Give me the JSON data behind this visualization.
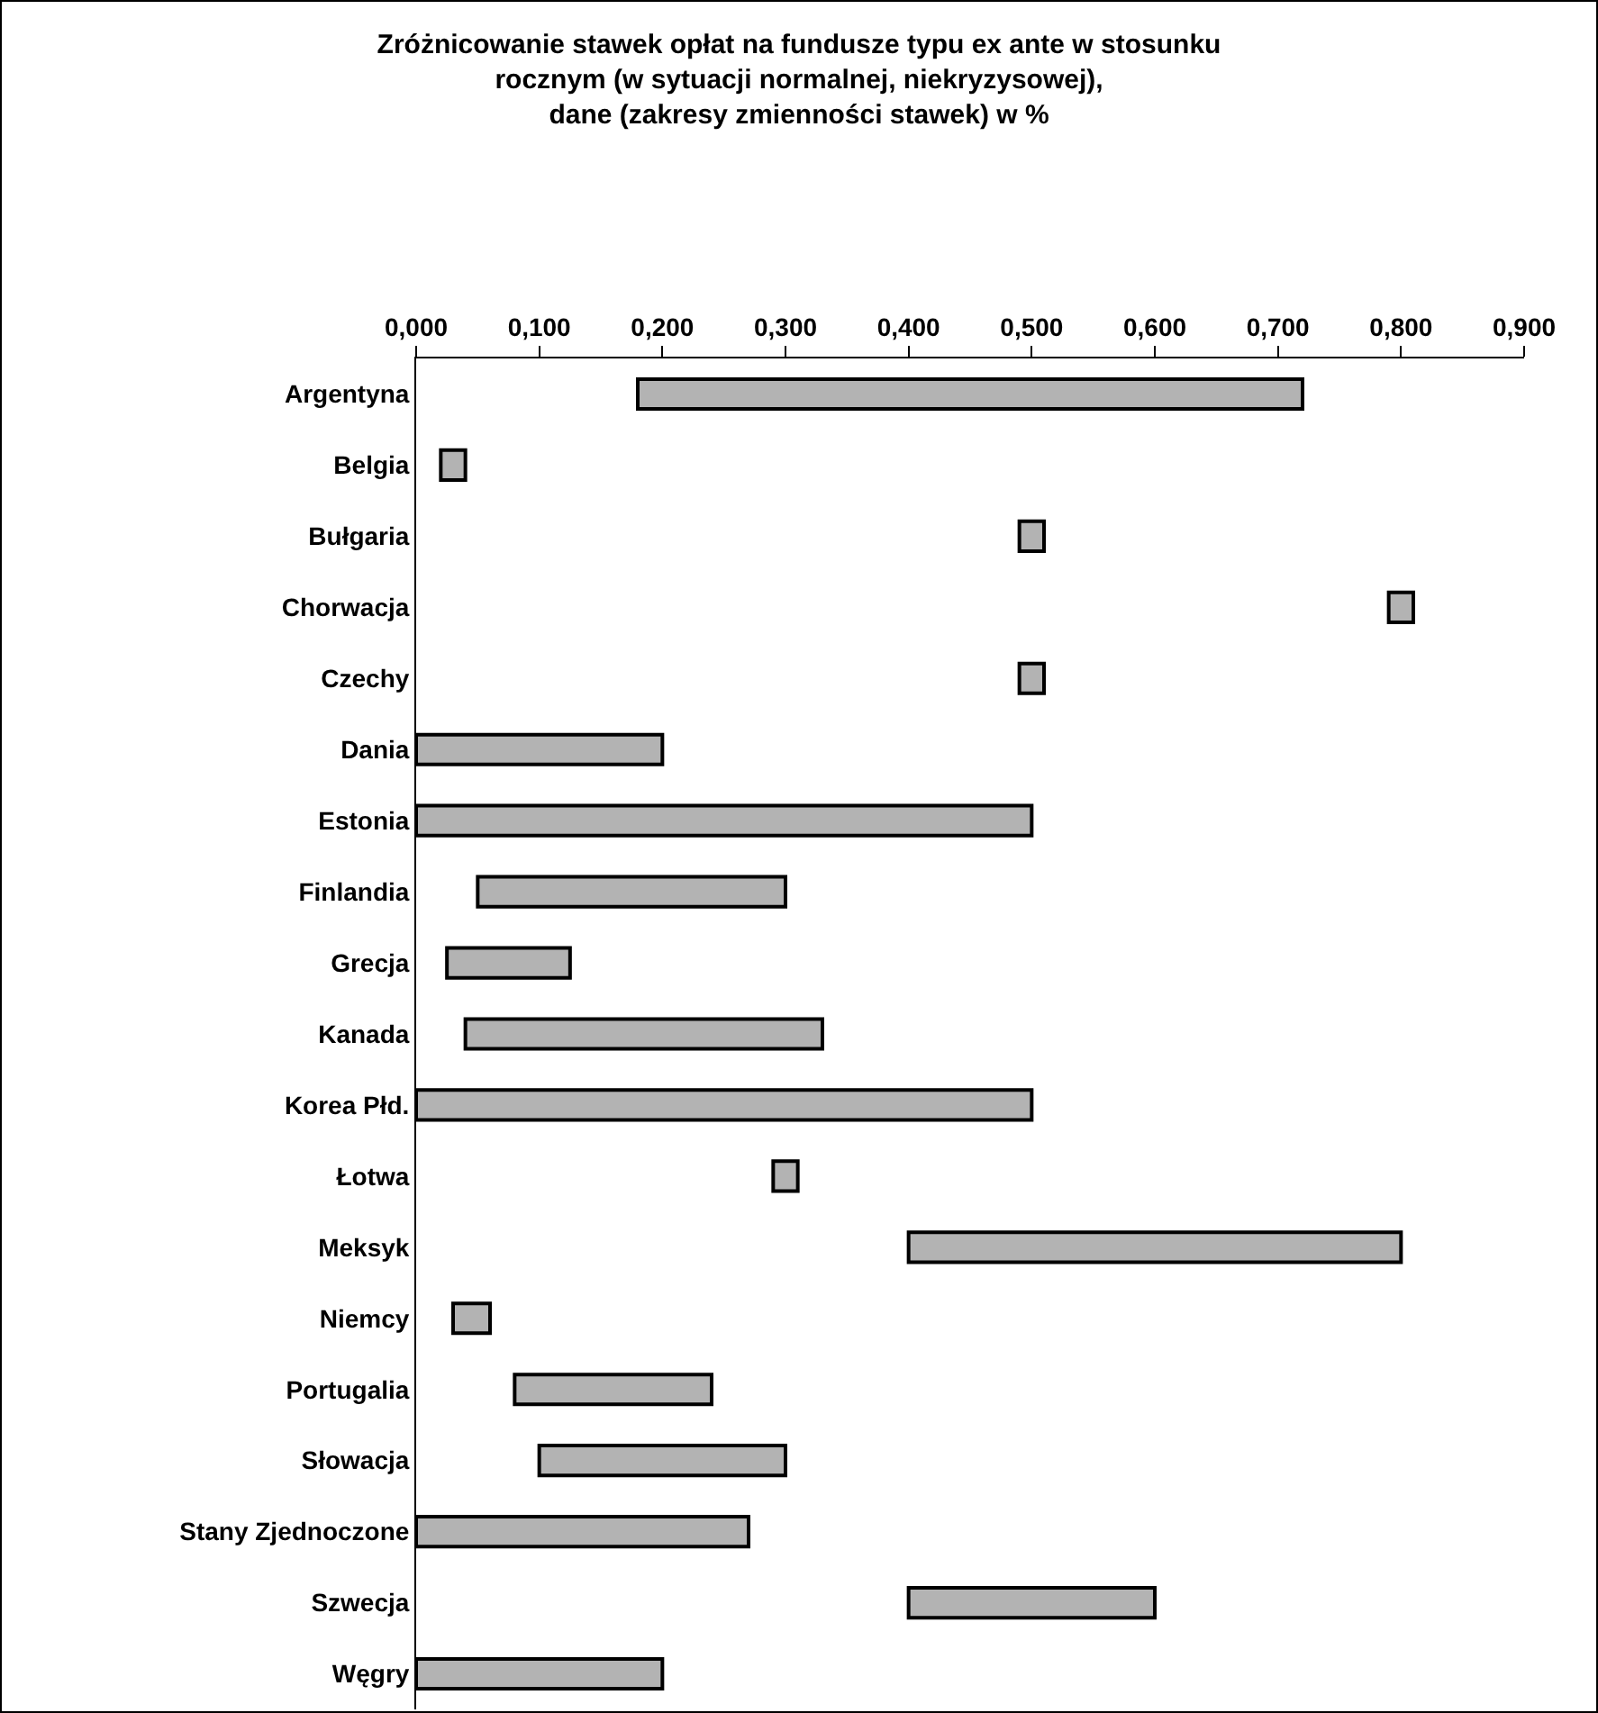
{
  "chart_data": {
    "type": "bar",
    "orientation": "horizontal",
    "title": "Zróżnicowanie stawek opłat na fundusze typu ex ante w stosunku\nrocznym (w sytuacji normalnej, niekryzysowej),\ndane (zakresy zmienności stawek) w %",
    "categories": [
      "Argentyna",
      "Belgia",
      "Bułgaria",
      "Chorwacja",
      "Czechy",
      "Dania",
      "Estonia",
      "Finlandia",
      "Grecja",
      "Kanada",
      "Korea Płd.",
      "Łotwa",
      "Meksyk",
      "Niemcy",
      "Portugalia",
      "Słowacja",
      "Stany Zjednoczone",
      "Szwecja",
      "Węgry"
    ],
    "base": [
      0.18,
      0.02,
      0.49,
      0.79,
      0.49,
      0,
      0,
      0.05,
      0.025,
      0.04,
      0,
      0.29,
      0.4,
      0.03,
      0.08,
      0.1,
      0,
      0.4,
      0
    ],
    "values": [
      0.54,
      0.02,
      0.02,
      0.02,
      0.02,
      0.2,
      0.5,
      0.25,
      0.1,
      0.29,
      0.5,
      0.02,
      0.4,
      0.03,
      0.16,
      0.2,
      0.27,
      0.2,
      0.2
    ],
    "color": "#b3b3b3",
    "xlim": [
      0,
      0.9
    ],
    "xticks": [
      {
        "value": 0,
        "label": "0,000"
      },
      {
        "value": 0.1,
        "label": "0,100"
      },
      {
        "value": 0.2,
        "label": "0,200"
      },
      {
        "value": 0.3,
        "label": "0,300"
      },
      {
        "value": 0.4,
        "label": "0,400"
      },
      {
        "value": 0.5,
        "label": "0,500"
      },
      {
        "value": 0.6,
        "label": "0,600"
      },
      {
        "value": 0.7,
        "label": "0,700"
      },
      {
        "value": 0.8,
        "label": "0,800"
      },
      {
        "value": 0.9,
        "label": "0,900"
      }
    ],
    "grid": false
  }
}
